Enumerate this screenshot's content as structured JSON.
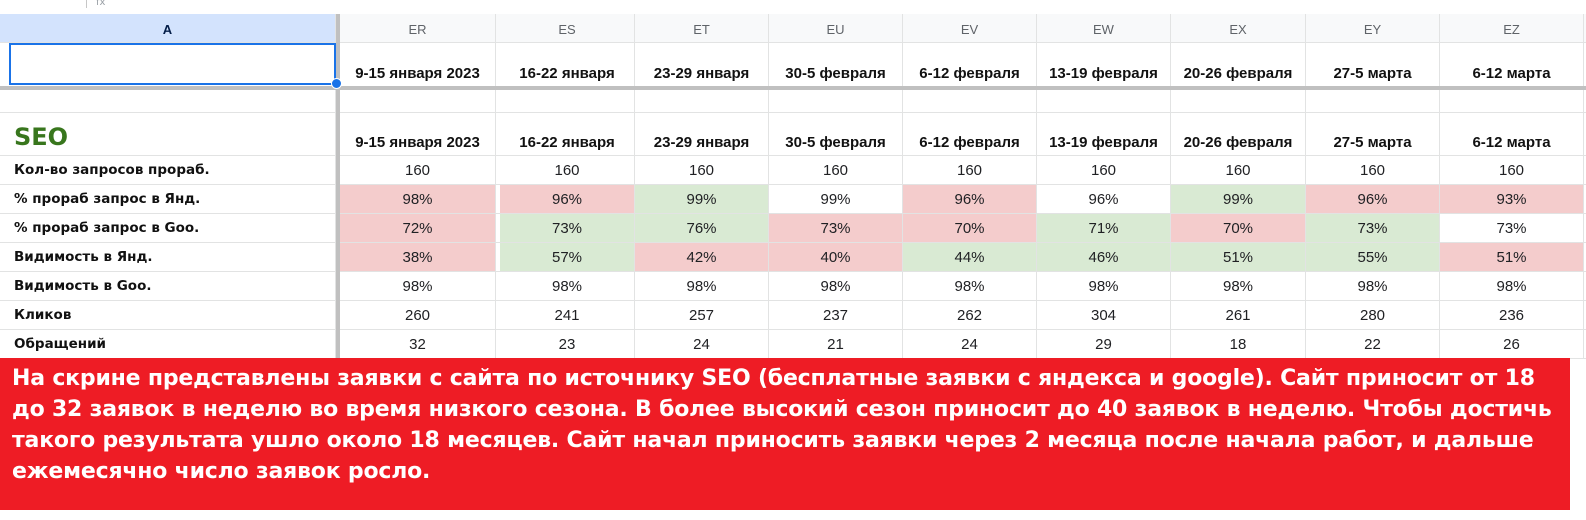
{
  "colors": {
    "pink": "#f4cccc",
    "green": "#d9ead3",
    "banner": "#ee1c25",
    "seo_title": "#38761d",
    "selection": "#1a73e8"
  },
  "formula_bar": {
    "icon": "fx-icon",
    "label": "fx"
  },
  "col_a_header": "A",
  "columns": [
    {
      "id": "ER",
      "week": "9-15 января 2023"
    },
    {
      "id": "ES",
      "week": "16-22 января"
    },
    {
      "id": "ET",
      "week": "23-29 января"
    },
    {
      "id": "EU",
      "week": "30-5 февраля"
    },
    {
      "id": "EV",
      "week": "6-12 февраля"
    },
    {
      "id": "EW",
      "week": "13-19 февраля"
    },
    {
      "id": "EX",
      "week": "20-26 февраля"
    },
    {
      "id": "EY",
      "week": "27-5 марта"
    },
    {
      "id": "EZ",
      "week": "6-12 марта"
    }
  ],
  "section_title": "SEO",
  "metrics": [
    {
      "label": "Кол-во запросов прораб.",
      "values": [
        "160",
        "160",
        "160",
        "160",
        "160",
        "160",
        "160",
        "160",
        "160"
      ],
      "fills": [
        "",
        "",
        "",
        "",
        "",
        "",
        "",
        "",
        ""
      ]
    },
    {
      "label": "% прораб запрос в Янд.",
      "values": [
        "98%",
        "96%",
        "99%",
        "99%",
        "96%",
        "96%",
        "99%",
        "96%",
        "93%"
      ],
      "fills": [
        "pink",
        "pink",
        "green",
        "",
        "pink",
        "",
        "green",
        "pink",
        "pink"
      ]
    },
    {
      "label": "% прораб запрос в Goo.",
      "values": [
        "72%",
        "73%",
        "76%",
        "73%",
        "70%",
        "71%",
        "70%",
        "73%",
        "73%"
      ],
      "fills": [
        "pink",
        "green",
        "green",
        "pink",
        "pink",
        "green",
        "pink",
        "green",
        ""
      ]
    },
    {
      "label": "Видимость в Янд.",
      "values": [
        "38%",
        "57%",
        "42%",
        "40%",
        "44%",
        "46%",
        "51%",
        "55%",
        "51%"
      ],
      "fills": [
        "pink",
        "green",
        "pink",
        "pink",
        "green",
        "green",
        "green",
        "green",
        "pink"
      ]
    },
    {
      "label": "Видимость в Goo.",
      "values": [
        "98%",
        "98%",
        "98%",
        "98%",
        "98%",
        "98%",
        "98%",
        "98%",
        "98%"
      ],
      "fills": [
        "",
        "",
        "",
        "",
        "",
        "",
        "",
        "",
        ""
      ]
    },
    {
      "label": "Кликов",
      "values": [
        "260",
        "241",
        "257",
        "237",
        "262",
        "304",
        "261",
        "280",
        "236"
      ],
      "fills": [
        "",
        "",
        "",
        "",
        "",
        "",
        "",
        "",
        ""
      ]
    },
    {
      "label": "Обращений",
      "values": [
        "32",
        "23",
        "24",
        "21",
        "24",
        "29",
        "18",
        "22",
        "26"
      ],
      "fills": [
        "",
        "",
        "",
        "",
        "",
        "",
        "",
        "",
        ""
      ]
    }
  ],
  "banner_text": "На скрине представлены заявки с сайта по источнику SEO (бесплатные заявки с яндекса и google). Сайт приносит от 18 до 32 заявок в неделю во время низкого сезона. В более высокий сезон приносит до 40 заявок в неделю. Чтобы достичь такого результата ушло около 18 месяцев. Сайт начал приносить заявки через 2 месяца после начала работ, и дальше ежемесячно число заявок росло."
}
